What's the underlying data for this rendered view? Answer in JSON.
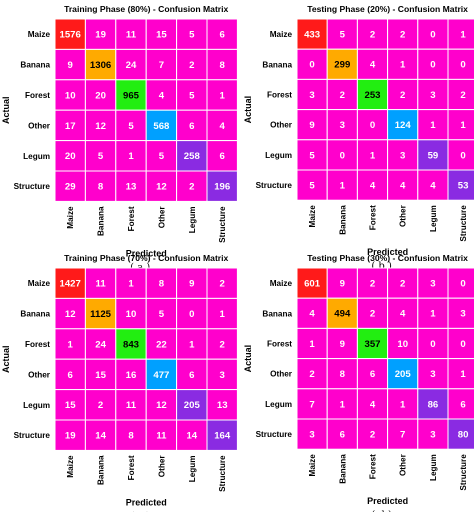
{
  "colors": {
    "pink": "#ff00cc",
    "red": "#ff1a1a",
    "orange": "#ffaa00",
    "green": "#22ee11",
    "blue": "#00a0ff",
    "purple": "#8a2be2",
    "grid": "#ffffff"
  },
  "chart_data": [
    {
      "type": "heatmap",
      "title": "Training Phase (80%) - Confusion Matrix",
      "xlabel": "Predicted",
      "ylabel": "Actual",
      "categories": [
        "Maize",
        "Banana",
        "Forest",
        "Other",
        "Legum",
        "Structure"
      ],
      "matrix": [
        [
          1576,
          19,
          11,
          15,
          5,
          6
        ],
        [
          9,
          1306,
          24,
          7,
          2,
          8
        ],
        [
          10,
          20,
          965,
          4,
          5,
          1
        ],
        [
          17,
          12,
          5,
          568,
          6,
          4
        ],
        [
          20,
          5,
          1,
          5,
          258,
          6
        ],
        [
          29,
          8,
          13,
          12,
          2,
          196
        ]
      ],
      "caption": "( a )"
    },
    {
      "type": "heatmap",
      "title": "Testing Phase (20%) - Confusion Matrix",
      "xlabel": "Predicted",
      "ylabel": "Actual",
      "categories": [
        "Maize",
        "Banana",
        "Forest",
        "Other",
        "Legum",
        "Structure"
      ],
      "matrix": [
        [
          433,
          5,
          2,
          2,
          0,
          1
        ],
        [
          0,
          299,
          4,
          1,
          0,
          0
        ],
        [
          3,
          2,
          253,
          2,
          3,
          2
        ],
        [
          9,
          3,
          0,
          124,
          1,
          1
        ],
        [
          5,
          0,
          1,
          3,
          59,
          0
        ],
        [
          5,
          1,
          4,
          4,
          4,
          53
        ]
      ],
      "caption": "( b )"
    },
    {
      "type": "heatmap",
      "title": "Training Phase (70%) - Confusion Matrix",
      "xlabel": "Predicted",
      "ylabel": "Actual",
      "categories": [
        "Maize",
        "Banana",
        "Forest",
        "Other",
        "Legum",
        "Structure"
      ],
      "matrix": [
        [
          1427,
          11,
          1,
          8,
          9,
          2
        ],
        [
          12,
          1125,
          10,
          5,
          0,
          1
        ],
        [
          1,
          24,
          843,
          22,
          1,
          2
        ],
        [
          6,
          15,
          16,
          477,
          6,
          3
        ],
        [
          15,
          2,
          11,
          12,
          205,
          13
        ],
        [
          19,
          14,
          8,
          11,
          14,
          164
        ]
      ],
      "caption": "( c )"
    },
    {
      "type": "heatmap",
      "title": "Testing Phase (30%) - Confusion Matrix",
      "xlabel": "Predicted",
      "ylabel": "Actual",
      "categories": [
        "Maize",
        "Banana",
        "Forest",
        "Other",
        "Legum",
        "Structure"
      ],
      "matrix": [
        [
          601,
          9,
          2,
          2,
          3,
          0
        ],
        [
          4,
          494,
          2,
          4,
          1,
          3
        ],
        [
          1,
          9,
          357,
          10,
          0,
          0
        ],
        [
          2,
          8,
          6,
          205,
          3,
          1
        ],
        [
          7,
          1,
          4,
          1,
          86,
          6
        ],
        [
          3,
          6,
          2,
          7,
          3,
          80
        ]
      ],
      "caption": "( d )"
    }
  ]
}
